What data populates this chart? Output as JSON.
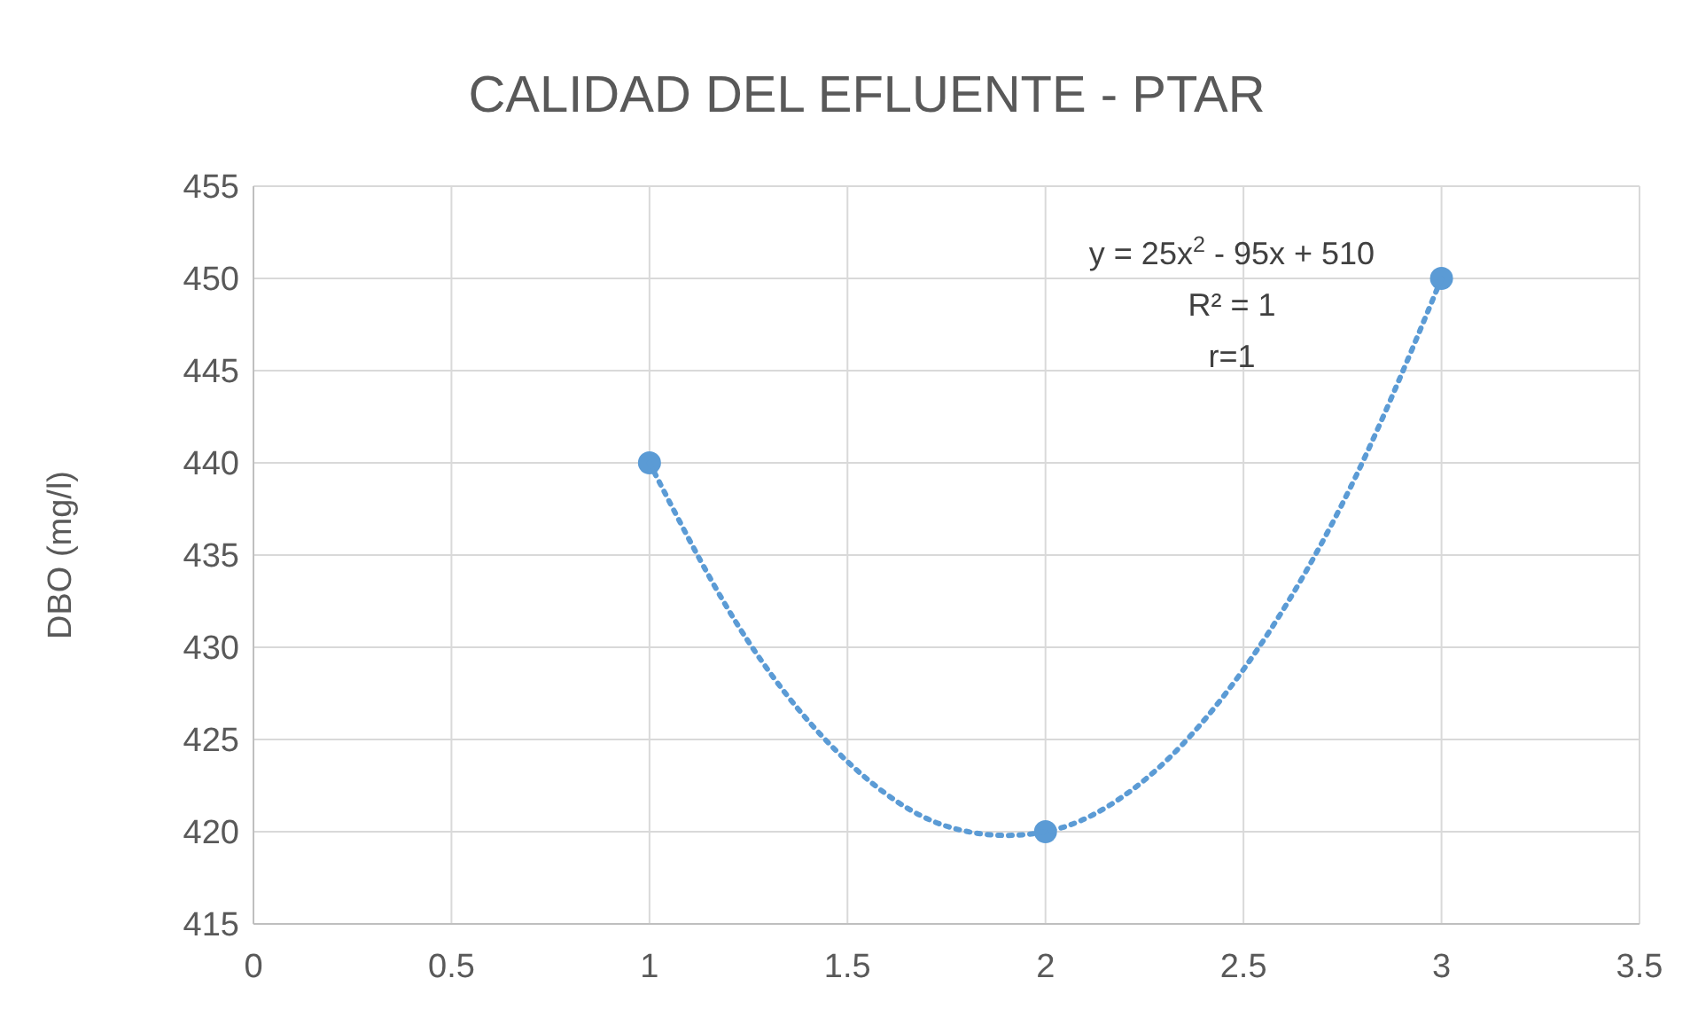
{
  "chart_data": {
    "type": "scatter",
    "title": "CALIDAD DEL EFLUENTE - PTAR",
    "ylabel": "DBO (mg/l)",
    "xlim": [
      0,
      3.5
    ],
    "xticks": [
      0,
      0.5,
      1,
      1.5,
      2,
      2.5,
      3,
      3.5
    ],
    "ylim": [
      415,
      455
    ],
    "yticks": [
      415,
      420,
      425,
      430,
      435,
      440,
      445,
      450,
      455
    ],
    "grid": true,
    "series": [
      {
        "color": "#5b9bd5",
        "marker": "circle",
        "x": [
          1,
          2,
          3
        ],
        "values": [
          440,
          420,
          450
        ]
      },
      {
        "type": "line",
        "color": "#5b9bd5",
        "marker": "none",
        "line_style": "dotted",
        "x": [
          1,
          1.25,
          1.5,
          1.75,
          1.9,
          2,
          2.25,
          2.5,
          2.75,
          3
        ],
        "values": [
          440,
          430.3,
          423.8,
          420.3,
          419.8,
          420,
          422.8,
          428.8,
          437.8,
          450
        ]
      }
    ],
    "annotations": [
      "y = 25x$^{2}$ - 95x + 510",
      "R² = 1",
      "r=1"
    ]
  }
}
